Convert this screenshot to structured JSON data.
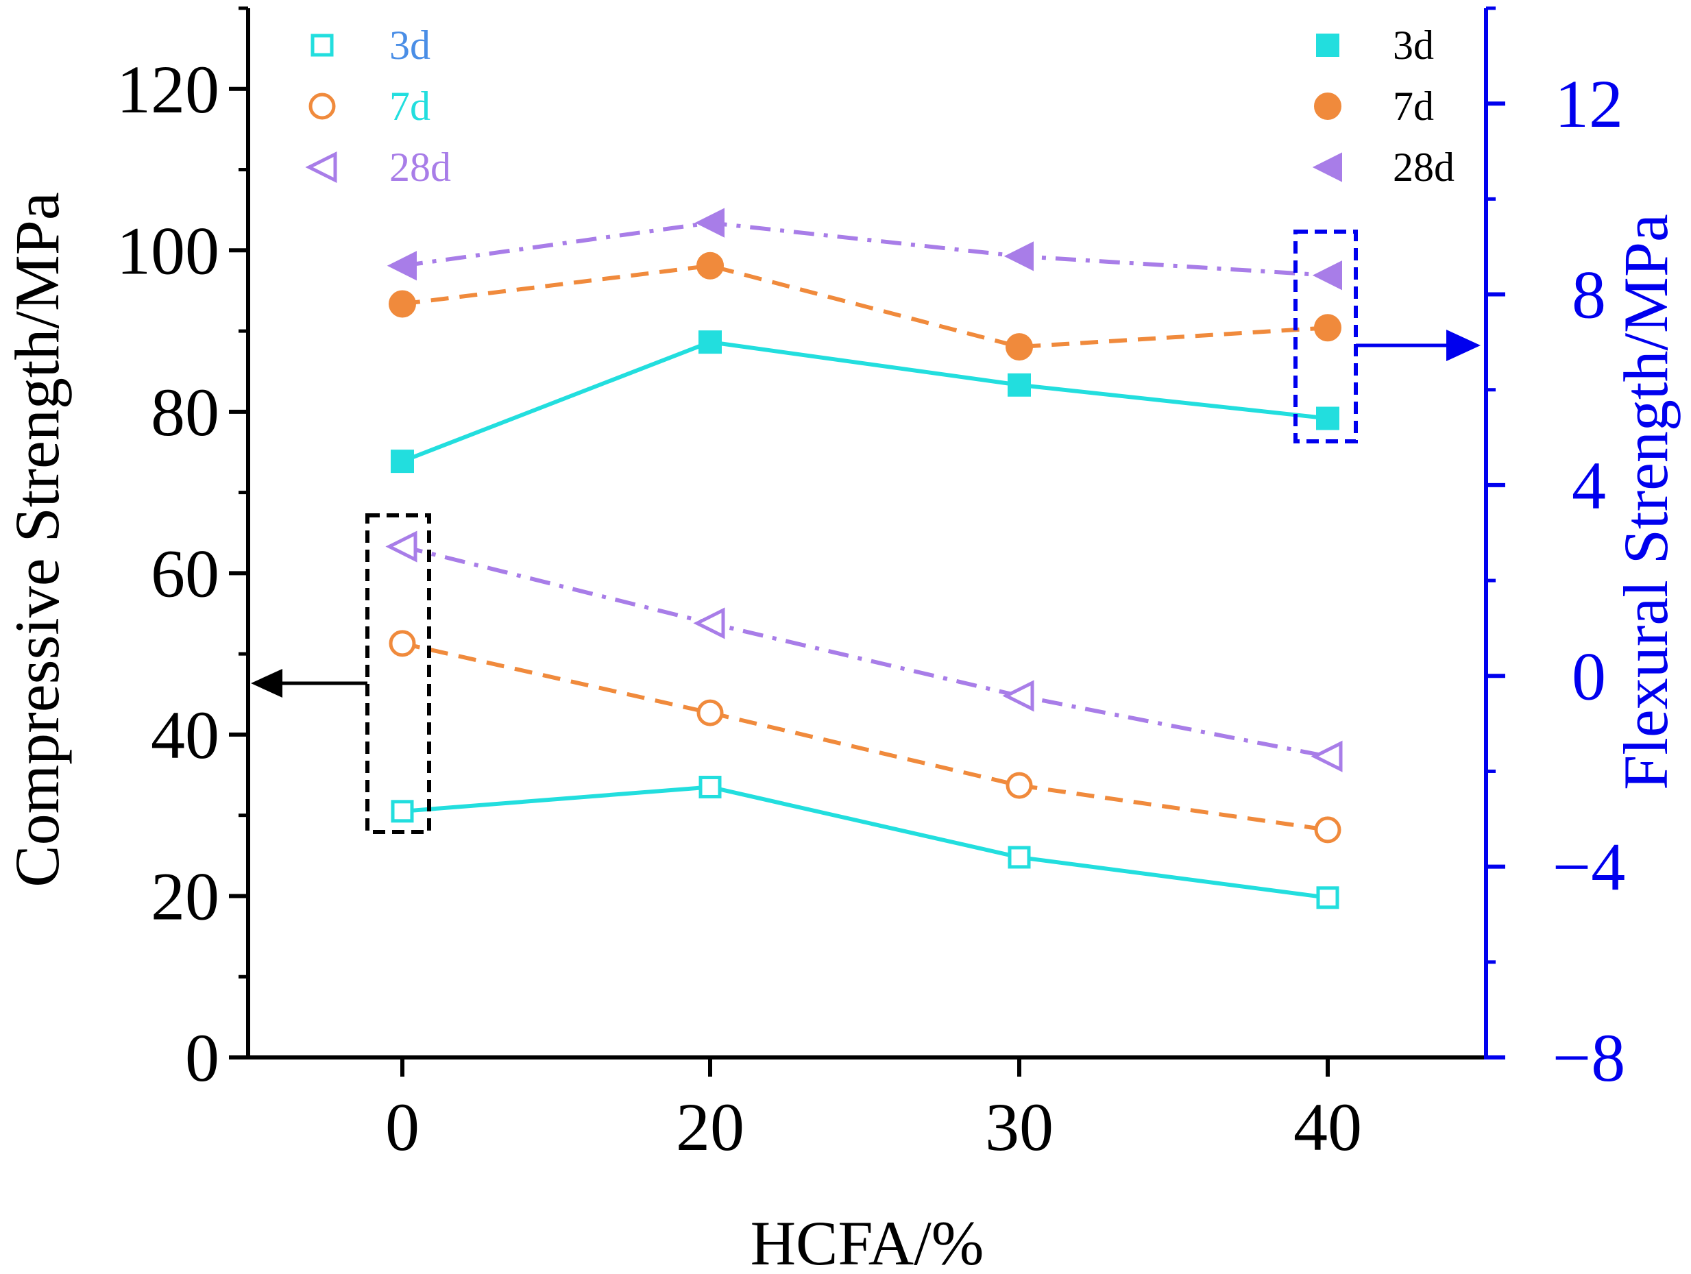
{
  "chart_data": {
    "type": "line",
    "categories": [
      "0",
      "20",
      "30",
      "40"
    ],
    "xlabel": "HCFA/%",
    "ylabel_left": "Compressive Strength/MPa",
    "ylabel_right": "Flexural Strength/MPa",
    "ylim_left": [
      0,
      130
    ],
    "ylim_right": [
      -8,
      14
    ],
    "yticks_left": [
      "0",
      "20",
      "40",
      "60",
      "80",
      "100",
      "120"
    ],
    "yticks_right": [
      "−8",
      "−4",
      "0",
      "4",
      "8",
      "12"
    ],
    "colors": {
      "axis_left": "#000000",
      "axis_right": "#0000ee",
      "3d": "#22dede",
      "7d": "#f08a3c",
      "28d": "#a87de8",
      "legend_3d_text_open": "#4a8ee6"
    },
    "series": [
      {
        "name": "3d",
        "axis": "left",
        "marker": "open-square",
        "line": "solid",
        "values": [
          30.5,
          33.5,
          24.8,
          19.8
        ]
      },
      {
        "name": "7d",
        "axis": "left",
        "marker": "open-circle",
        "line": "dashed",
        "values": [
          51.3,
          42.7,
          33.7,
          28.2
        ]
      },
      {
        "name": "28d",
        "axis": "left",
        "marker": "open-triangle-left",
        "line": "dashdot",
        "values": [
          63.3,
          53.8,
          44.8,
          37.3
        ]
      },
      {
        "name": "3d",
        "axis": "right",
        "marker": "filled-square",
        "line": "solid",
        "values": [
          4.5,
          7.0,
          6.1,
          5.4
        ]
      },
      {
        "name": "7d",
        "axis": "right",
        "marker": "filled-circle",
        "line": "dashed",
        "values": [
          7.8,
          8.6,
          6.9,
          7.3
        ]
      },
      {
        "name": "28d",
        "axis": "right",
        "marker": "filled-triangle-left",
        "line": "dashdot",
        "values": [
          8.6,
          9.5,
          8.8,
          8.4
        ]
      }
    ],
    "legend_left": [
      "3d",
      "7d",
      "28d"
    ],
    "legend_right": [
      "3d",
      "7d",
      "28d"
    ]
  }
}
